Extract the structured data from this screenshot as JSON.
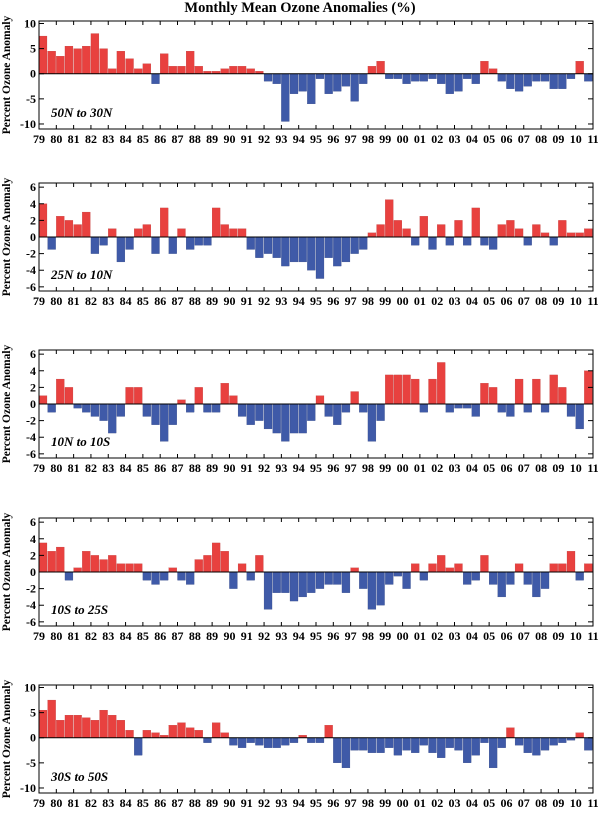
{
  "title": "Monthly Mean Ozone Anomalies (%)",
  "colors": {
    "positive": "#e8413f",
    "negative": "#3f5aa8",
    "axis": "#000000"
  },
  "chart_data": [
    {
      "type": "bar",
      "region": "50N to 30N",
      "ylabel": "Percent Ozone Anomaly",
      "ylim": [
        -11,
        10.5
      ],
      "yticks": [
        -10,
        -5,
        0,
        5,
        10
      ],
      "xlim": [
        1979,
        2011
      ],
      "xticks": [
        "79",
        "80",
        "81",
        "82",
        "83",
        "84",
        "85",
        "86",
        "87",
        "88",
        "89",
        "90",
        "91",
        "92",
        "93",
        "94",
        "95",
        "96",
        "97",
        "98",
        "99",
        "00",
        "01",
        "02",
        "03",
        "04",
        "05",
        "06",
        "07",
        "08",
        "09",
        "10",
        "11"
      ],
      "x_start": 1979,
      "x_step": 0.5,
      "values": [
        7.5,
        4.5,
        3.5,
        5.5,
        5.0,
        5.5,
        8.0,
        5.0,
        1.0,
        4.5,
        3.0,
        1.0,
        2.0,
        -2.0,
        4.0,
        1.5,
        1.5,
        4.5,
        1.5,
        0.5,
        0.5,
        1.0,
        1.5,
        1.5,
        1.0,
        0.5,
        -1.5,
        -2.0,
        -9.5,
        -4.0,
        -3.5,
        -6.0,
        -1.0,
        -4.0,
        -3.5,
        -2.5,
        -5.5,
        -2.0,
        1.5,
        2.5,
        -1.0,
        -1.0,
        -2.0,
        -1.5,
        -1.5,
        -1.0,
        -2.0,
        -4.0,
        -3.5,
        -1.0,
        -2.0,
        2.5,
        1.0,
        -1.5,
        -3.0,
        -3.5,
        -2.5,
        -1.5,
        -1.5,
        -3.0,
        -3.0,
        -1.0,
        2.5,
        -1.5
      ]
    },
    {
      "type": "bar",
      "region": "25N to 10N",
      "ylabel": "Percent Ozone Anomaly",
      "ylim": [
        -6.5,
        6.5
      ],
      "yticks": [
        -6,
        -4,
        -2,
        0,
        2,
        4,
        6
      ],
      "xlim": [
        1979,
        2011
      ],
      "xticks": [
        "79",
        "80",
        "81",
        "82",
        "83",
        "84",
        "85",
        "86",
        "87",
        "88",
        "89",
        "90",
        "91",
        "92",
        "93",
        "94",
        "95",
        "96",
        "97",
        "98",
        "99",
        "00",
        "01",
        "02",
        "03",
        "04",
        "05",
        "06",
        "07",
        "08",
        "09",
        "10",
        "11"
      ],
      "x_start": 1979,
      "x_step": 0.5,
      "values": [
        4.0,
        -1.5,
        2.5,
        2.0,
        1.5,
        3.0,
        -2.0,
        -1.0,
        1.0,
        -3.0,
        -1.5,
        1.0,
        1.5,
        -2.0,
        3.5,
        -2.0,
        1.0,
        -1.5,
        -1.0,
        -1.0,
        3.5,
        1.5,
        1.0,
        1.0,
        -1.5,
        -2.5,
        -2.0,
        -2.5,
        -3.5,
        -3.0,
        -3.0,
        -4.0,
        -5.0,
        -2.5,
        -3.5,
        -3.0,
        -2.0,
        -1.5,
        0.5,
        1.5,
        4.5,
        2.0,
        1.0,
        -1.0,
        2.5,
        -1.5,
        1.5,
        -1.0,
        2.0,
        -1.0,
        3.5,
        -1.0,
        -1.5,
        1.5,
        2.0,
        1.0,
        -1.0,
        1.5,
        0.5,
        -1.0,
        2.0,
        0.5,
        0.5,
        1.0
      ]
    },
    {
      "type": "bar",
      "region": "10N to 10S",
      "ylabel": "Percent Ozone Anomaly",
      "ylim": [
        -6.5,
        6.5
      ],
      "yticks": [
        -6,
        -4,
        -2,
        0,
        2,
        4,
        6
      ],
      "xlim": [
        1979,
        2011
      ],
      "xticks": [
        "79",
        "80",
        "81",
        "82",
        "83",
        "84",
        "85",
        "86",
        "87",
        "88",
        "89",
        "90",
        "91",
        "92",
        "93",
        "94",
        "95",
        "96",
        "97",
        "98",
        "99",
        "00",
        "01",
        "02",
        "03",
        "04",
        "05",
        "06",
        "07",
        "08",
        "09",
        "10",
        "11"
      ],
      "x_start": 1979,
      "x_step": 0.5,
      "values": [
        1.0,
        -1.0,
        3.0,
        2.0,
        -0.5,
        -1.0,
        -1.5,
        -2.0,
        -3.5,
        -1.5,
        2.0,
        2.0,
        -1.5,
        -2.5,
        -4.5,
        -2.5,
        0.5,
        -1.0,
        2.0,
        -1.0,
        -1.0,
        2.5,
        1.0,
        -1.5,
        -2.5,
        -2.0,
        -3.0,
        -3.5,
        -4.5,
        -3.5,
        -3.5,
        -2.0,
        1.0,
        -1.5,
        -2.5,
        -1.0,
        1.5,
        -1.0,
        -4.5,
        -2.0,
        3.5,
        3.5,
        3.5,
        3.0,
        -1.0,
        3.0,
        5.0,
        -1.0,
        -0.5,
        -0.5,
        -1.5,
        2.5,
        2.0,
        -1.0,
        -1.5,
        3.0,
        -1.0,
        3.0,
        -1.0,
        3.5,
        2.0,
        -1.5,
        -3.0,
        4.0
      ]
    },
    {
      "type": "bar",
      "region": "10S to 25S",
      "ylabel": "Percent Ozone Anomaly",
      "ylim": [
        -6.5,
        6.5
      ],
      "yticks": [
        -6,
        -4,
        -2,
        0,
        2,
        4,
        6
      ],
      "xlim": [
        1979,
        2011
      ],
      "xticks": [
        "79",
        "80",
        "81",
        "82",
        "83",
        "84",
        "85",
        "86",
        "87",
        "88",
        "89",
        "90",
        "91",
        "92",
        "93",
        "94",
        "95",
        "96",
        "97",
        "98",
        "99",
        "00",
        "01",
        "02",
        "03",
        "04",
        "05",
        "06",
        "07",
        "08",
        "09",
        "10",
        "11"
      ],
      "x_start": 1979,
      "x_step": 0.5,
      "values": [
        3.5,
        2.5,
        3.0,
        -1.0,
        0.5,
        2.5,
        2.0,
        1.5,
        2.0,
        1.0,
        1.0,
        1.0,
        -1.0,
        -1.5,
        -1.0,
        0.5,
        -1.0,
        -1.5,
        1.5,
        2.0,
        3.5,
        2.5,
        -2.0,
        1.0,
        -1.0,
        2.0,
        -4.5,
        -2.5,
        -2.5,
        -3.5,
        -3.0,
        -2.5,
        -2.0,
        -1.5,
        -1.5,
        -2.5,
        0.5,
        -2.0,
        -4.5,
        -4.0,
        -1.5,
        -0.5,
        -2.0,
        1.0,
        -1.0,
        1.0,
        2.0,
        0.5,
        1.0,
        -1.5,
        -1.0,
        2.0,
        -1.5,
        -3.0,
        -1.5,
        1.0,
        -1.5,
        -3.0,
        -2.0,
        1.0,
        1.0,
        2.5,
        -1.0,
        1.0
      ]
    },
    {
      "type": "bar",
      "region": "30S to 50S",
      "ylabel": "Percent Ozone Anomaly",
      "ylim": [
        -11,
        10.5
      ],
      "yticks": [
        -10,
        -5,
        0,
        5,
        10
      ],
      "xlim": [
        1979,
        2011
      ],
      "xticks": [
        "79",
        "80",
        "81",
        "82",
        "83",
        "84",
        "85",
        "86",
        "87",
        "88",
        "89",
        "90",
        "91",
        "92",
        "93",
        "94",
        "95",
        "96",
        "97",
        "98",
        "99",
        "00",
        "01",
        "02",
        "03",
        "04",
        "05",
        "06",
        "07",
        "08",
        "09",
        "10",
        "11"
      ],
      "x_start": 1979,
      "x_step": 0.5,
      "values": [
        5.5,
        7.5,
        3.5,
        4.5,
        4.5,
        4.0,
        3.5,
        5.5,
        4.5,
        3.5,
        1.5,
        -3.5,
        1.5,
        1.0,
        0.5,
        2.5,
        3.0,
        2.0,
        1.5,
        -1.0,
        3.0,
        1.0,
        -1.5,
        -2.0,
        -1.0,
        -1.5,
        -2.0,
        -2.0,
        -1.5,
        -1.0,
        0.5,
        -1.0,
        -1.0,
        2.5,
        -5.0,
        -6.0,
        -2.5,
        -2.5,
        -3.0,
        -3.0,
        -2.0,
        -3.5,
        -2.5,
        -3.0,
        -1.5,
        -3.0,
        -4.0,
        -2.0,
        -2.5,
        -5.0,
        -3.5,
        -1.0,
        -6.0,
        -2.0,
        2.0,
        -1.5,
        -3.0,
        -3.5,
        -2.5,
        -1.5,
        -1.0,
        -0.5,
        1.0,
        -2.5
      ]
    }
  ]
}
